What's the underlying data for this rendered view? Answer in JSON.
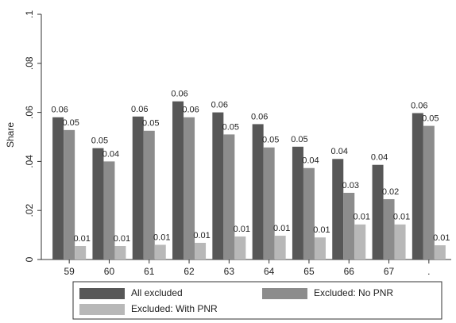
{
  "chart_data": {
    "type": "bar",
    "y_label": "Share",
    "categories": [
      "59",
      "60",
      "61",
      "62",
      "63",
      "64",
      "65",
      "66",
      "67",
      "."
    ],
    "series": [
      {
        "name": "All excluded",
        "color": "#575757",
        "values": [
          0.058,
          0.0454,
          0.0583,
          0.0645,
          0.06,
          0.0552,
          0.046,
          0.041,
          0.0386,
          0.0597
        ],
        "value_labels": [
          "0.06",
          "0.05",
          "0.06",
          "0.06",
          "0.06",
          "0.06",
          "0.05",
          "0.04",
          "0.04",
          "0.06"
        ]
      },
      {
        "name": "Excluded: No PNR",
        "color": "#8c8c8c",
        "values": [
          0.0528,
          0.04,
          0.0525,
          0.058,
          0.051,
          0.0457,
          0.0373,
          0.0272,
          0.0246,
          0.0545
        ],
        "value_labels": [
          "0.05",
          "0.04",
          "0.05",
          "0.06",
          "0.05",
          "0.05",
          "0.04",
          "0.03",
          "0.02",
          "0.05"
        ]
      },
      {
        "name": "Excluded: With PNR",
        "color": "#b8b8b8",
        "values": [
          0.0055,
          0.0055,
          0.006,
          0.0068,
          0.0094,
          0.0097,
          0.009,
          0.0143,
          0.0143,
          0.0058
        ],
        "value_labels": [
          "0.01",
          "0.01",
          "0.01",
          "0.01",
          "0.01",
          "0.01",
          "0.01",
          "0.01",
          "0.01",
          "0.01"
        ]
      }
    ],
    "ylim": [
      0,
      0.1
    ],
    "yticks": [
      0,
      {
        "value": 0.02,
        "label": ".02"
      },
      {
        "value": 0.04,
        "label": ".04"
      },
      {
        "value": 0.06,
        "label": ".06"
      },
      {
        "value": 0.08,
        "label": ".08"
      },
      {
        "value": 0.1,
        "label": ".1"
      }
    ],
    "grid": false
  }
}
